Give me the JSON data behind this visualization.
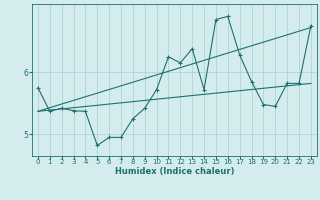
{
  "xlabel": "Humidex (Indice chaleur)",
  "ylabel": "",
  "background_color": "#d4ecee",
  "grid_color": "#afd4d8",
  "line_color": "#1e7070",
  "xlim": [
    -0.5,
    23.5
  ],
  "ylim": [
    4.65,
    7.1
  ],
  "yticks": [
    5,
    6
  ],
  "xticks": [
    0,
    1,
    2,
    3,
    4,
    5,
    6,
    7,
    8,
    9,
    10,
    11,
    12,
    13,
    14,
    15,
    16,
    17,
    18,
    19,
    20,
    21,
    22,
    23
  ],
  "line1_x": [
    0,
    1,
    2,
    3,
    4,
    5,
    6,
    7,
    8,
    9,
    10,
    11,
    12,
    13,
    14,
    15,
    16,
    17,
    18,
    19,
    20,
    21,
    22,
    23
  ],
  "line1_y": [
    5.75,
    5.37,
    5.42,
    5.38,
    5.37,
    4.82,
    4.95,
    4.95,
    5.25,
    5.42,
    5.72,
    6.25,
    6.15,
    6.38,
    5.72,
    6.85,
    6.9,
    6.28,
    5.85,
    5.48,
    5.45,
    5.82,
    5.82,
    6.75
  ],
  "line2_x": [
    0,
    23
  ],
  "line2_y": [
    5.37,
    6.72
  ],
  "line3_x": [
    0,
    23
  ],
  "line3_y": [
    5.37,
    5.82
  ]
}
